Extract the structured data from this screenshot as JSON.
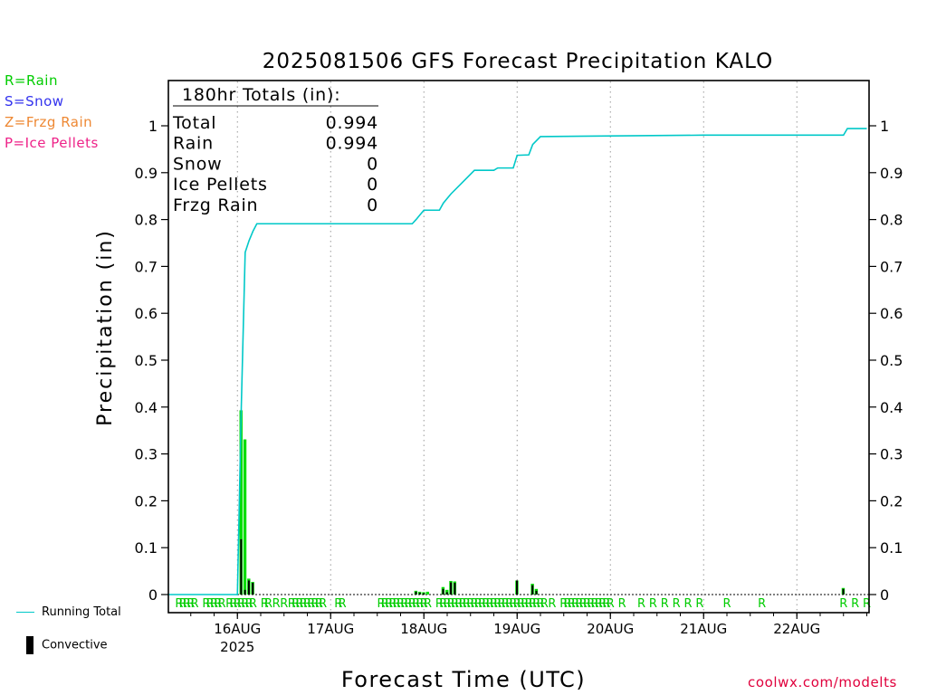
{
  "precip_type_legend": [
    {
      "label": "R=Rain",
      "color": "#00cc00"
    },
    {
      "label": "S=Snow",
      "color": "#3333ee"
    },
    {
      "label": "Z=Frzg Rain",
      "color": "#ee8833"
    },
    {
      "label": "P=Ice Pellets",
      "color": "#ee2288"
    }
  ],
  "bottom_legend": {
    "running_total_label": "Running Total",
    "convective_label": "Convective"
  },
  "credit": "coolwx.com/modelts",
  "totals_box": {
    "heading": "180hr Totals (in):",
    "rows": [
      {
        "label": "Total",
        "value": "0.994"
      },
      {
        "label": "Rain",
        "value": "0.994"
      },
      {
        "label": "Snow",
        "value": "0"
      },
      {
        "label": "Ice Pellets",
        "value": "0"
      },
      {
        "label": "Frzg Rain",
        "value": "0"
      }
    ]
  },
  "colors": {
    "running_total": "#00c8c8",
    "rain_bar": "#00dd00",
    "convective_bar": "#000000",
    "rain_marker": "#00cc00"
  },
  "chart_data": {
    "type": "bar",
    "title": "2025081506 GFS Forecast Precipitation KALO",
    "xlabel": "Forecast Time (UTC)",
    "ylabel": "Precipitation (in)",
    "x_unit": "hours after 2025-08-15 06Z",
    "ylim": [
      0,
      1.0
    ],
    "yticks": [
      0,
      0.1,
      0.2,
      0.3,
      0.4,
      0.5,
      0.6,
      0.7,
      0.8,
      0.9,
      1
    ],
    "ytick_labels": [
      "0",
      "0.1",
      "0.2",
      "0.3",
      "0.4",
      "0.5",
      "0.6",
      "0.7",
      "0.8",
      "0.9",
      "1"
    ],
    "xlim": [
      0,
      180
    ],
    "xticks": [
      {
        "hour": 18,
        "label": "16AUG",
        "sublabel": "2025"
      },
      {
        "hour": 42,
        "label": "17AUG",
        "sublabel": ""
      },
      {
        "hour": 66,
        "label": "18AUG",
        "sublabel": ""
      },
      {
        "hour": 90,
        "label": "19AUG",
        "sublabel": ""
      },
      {
        "hour": 114,
        "label": "20AUG",
        "sublabel": ""
      },
      {
        "hour": 138,
        "label": "21AUG",
        "sublabel": ""
      },
      {
        "hour": 162,
        "label": "22AUG",
        "sublabel": ""
      }
    ],
    "grid": "vertical dotted at day boundaries",
    "series": [
      {
        "name": "Running Total",
        "kind": "line",
        "x": [
          0,
          18,
          19,
          20,
          21,
          22,
          23,
          48,
          63,
          64,
          65,
          66,
          70,
          71,
          72,
          73,
          79,
          80,
          81,
          84,
          85,
          89,
          90,
          93,
          94,
          96,
          138,
          162,
          174,
          175,
          180
        ],
        "y": [
          0,
          0,
          0.4,
          0.73,
          0.755,
          0.775,
          0.791,
          0.791,
          0.791,
          0.8,
          0.81,
          0.82,
          0.82,
          0.835,
          0.845,
          0.855,
          0.905,
          0.905,
          0.905,
          0.905,
          0.91,
          0.91,
          0.937,
          0.938,
          0.96,
          0.977,
          0.98,
          0.98,
          0.98,
          0.994,
          0.994
        ]
      },
      {
        "name": "Rain",
        "kind": "bar",
        "x": [
          19,
          20,
          21,
          22,
          64,
          65,
          66,
          67,
          71,
          72,
          73,
          74,
          90,
          94,
          95,
          174
        ],
        "y": [
          0.393,
          0.331,
          0.034,
          0.027,
          0.008,
          0.006,
          0.005,
          0.006,
          0.016,
          0.01,
          0.029,
          0.028,
          0.03,
          0.023,
          0.012,
          0.014
        ]
      },
      {
        "name": "Convective",
        "kind": "bar",
        "x": [
          19,
          20,
          21,
          22,
          64,
          65,
          66,
          71,
          72,
          73,
          74,
          90,
          94,
          95,
          174
        ],
        "y": [
          0.118,
          0.01,
          0.03,
          0.025,
          0.006,
          0.004,
          0.003,
          0.012,
          0.005,
          0.026,
          0.025,
          0.03,
          0.02,
          0.008,
          0.012
        ]
      }
    ],
    "precip_type_markers": {
      "symbol": "R",
      "hours": [
        3,
        4,
        5,
        6,
        7,
        10,
        11,
        12,
        13,
        14,
        16,
        17,
        18,
        19,
        20,
        21,
        22,
        25,
        26,
        28,
        30,
        32,
        33,
        34,
        35,
        36,
        37,
        38,
        39,
        40,
        44,
        45,
        55,
        56,
        57,
        58,
        59,
        60,
        61,
        62,
        63,
        64,
        65,
        66,
        67,
        70,
        71,
        72,
        73,
        74,
        75,
        76,
        77,
        78,
        79,
        80,
        81,
        82,
        83,
        84,
        85,
        86,
        87,
        88,
        89,
        90,
        91,
        92,
        93,
        94,
        95,
        96,
        97,
        99,
        102,
        103,
        104,
        105,
        106,
        107,
        108,
        109,
        110,
        111,
        112,
        113,
        114,
        117,
        122,
        125,
        128,
        131,
        134,
        137,
        144,
        153,
        174,
        177,
        180
      ]
    }
  }
}
